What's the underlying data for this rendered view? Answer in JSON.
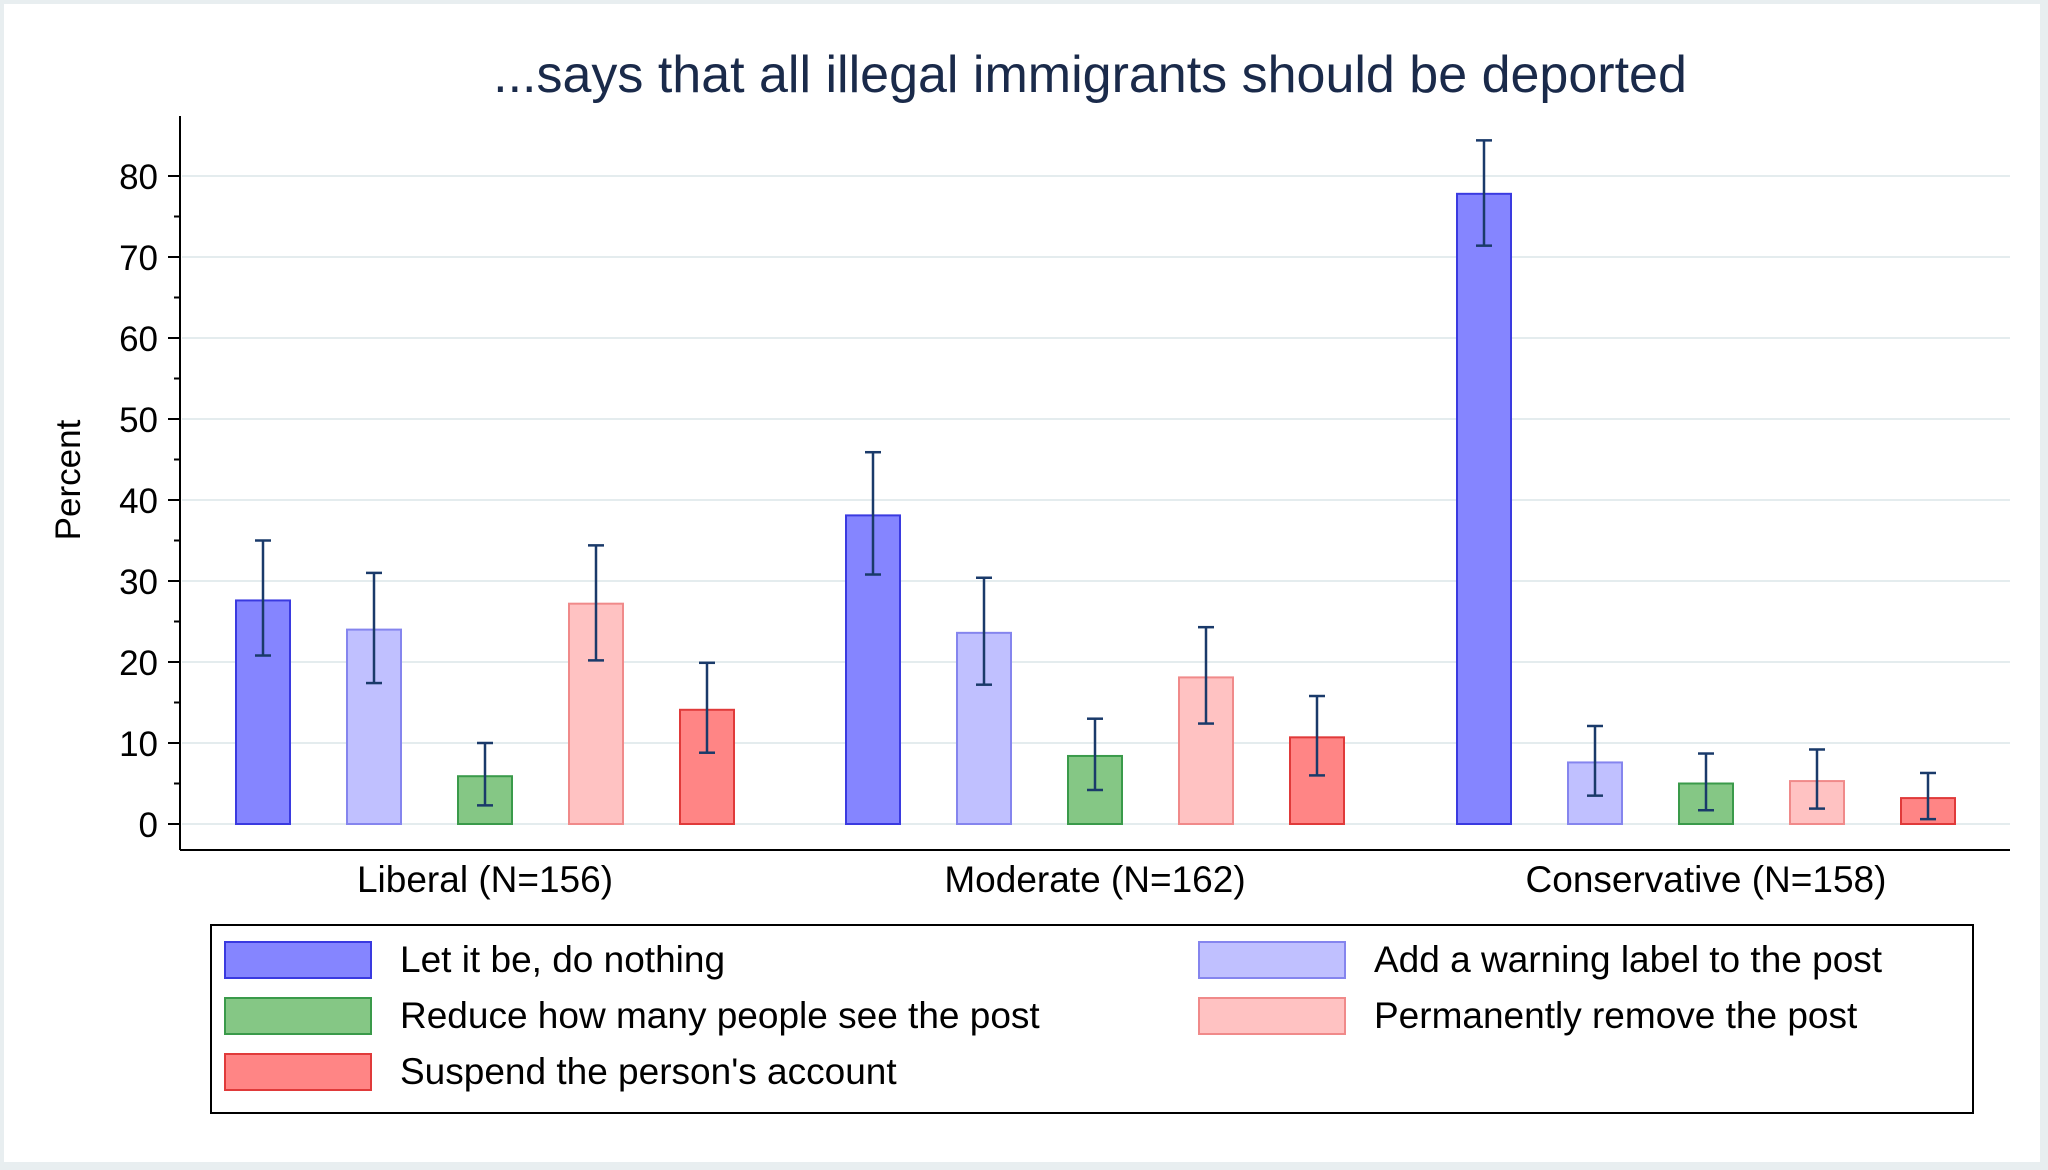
{
  "chart_data": {
    "type": "bar",
    "title": "...says that all illegal immigrants should be deported",
    "ylabel": "Percent",
    "xlabel": "",
    "ylim": [
      0,
      85
    ],
    "yticks": [
      0,
      10,
      20,
      30,
      40,
      50,
      60,
      70,
      80
    ],
    "grid": true,
    "legend_position": "bottom",
    "error_bars": true,
    "categories": [
      "Liberal (N=156)",
      "Moderate (N=162)",
      "Conservative (N=158)"
    ],
    "series": [
      {
        "name": "Let it be, do nothing",
        "color": "#8585ff",
        "border": "#3a3ae0",
        "values": [
          27.6,
          38.1,
          77.8
        ],
        "ci_low": [
          20.8,
          30.8,
          71.4
        ],
        "ci_high": [
          35.0,
          45.9,
          84.4
        ]
      },
      {
        "name": "Add a warning label to the post",
        "color": "#c0c0ff",
        "border": "#8585ee",
        "values": [
          24.0,
          23.6,
          7.6
        ],
        "ci_low": [
          17.4,
          17.2,
          3.5
        ],
        "ci_high": [
          31.0,
          30.4,
          12.1
        ]
      },
      {
        "name": "Reduce how many people see the post",
        "color": "#85c785",
        "border": "#3a9a4a",
        "values": [
          5.9,
          8.4,
          5.0
        ],
        "ci_low": [
          2.3,
          4.2,
          1.7
        ],
        "ci_high": [
          10.0,
          13.0,
          8.7
        ]
      },
      {
        "name": "Permanently remove the post",
        "color": "#ffc2c2",
        "border": "#f08a8a",
        "values": [
          27.2,
          18.1,
          5.3
        ],
        "ci_low": [
          20.2,
          12.4,
          1.9
        ],
        "ci_high": [
          34.4,
          24.3,
          9.2
        ]
      },
      {
        "name": "Suspend the person's account",
        "color": "#ff8585",
        "border": "#e03a3a",
        "values": [
          14.1,
          10.7,
          3.2
        ],
        "ci_low": [
          8.8,
          6.0,
          0.6
        ],
        "ci_high": [
          19.9,
          15.8,
          6.3
        ]
      }
    ]
  }
}
